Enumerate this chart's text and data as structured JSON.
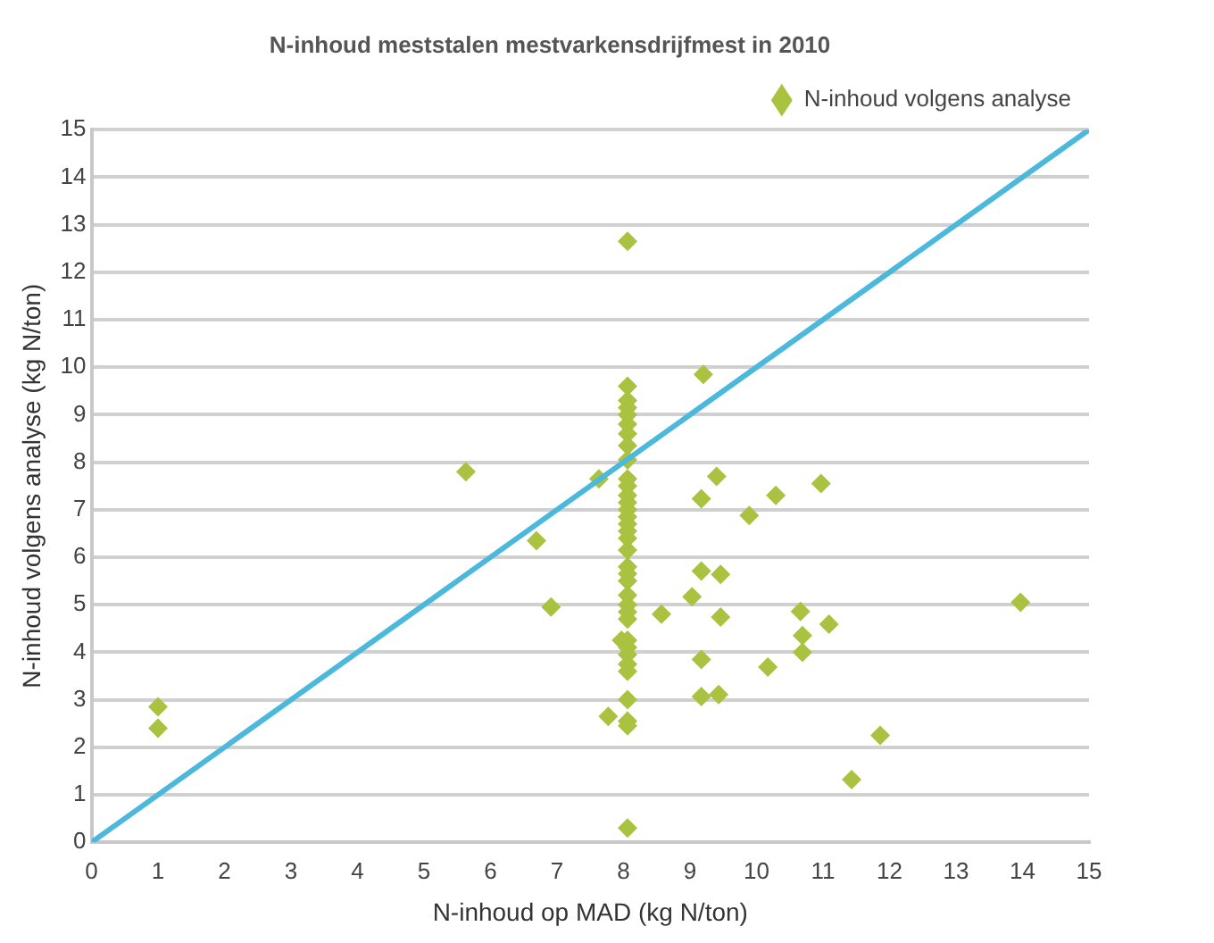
{
  "chart_data": {
    "type": "scatter",
    "title": "N-inhoud meststalen mestvarkensdrijfmest in 2010",
    "xlabel": "N-inhoud op MAD (kg N/ton)",
    "ylabel": "N-inhoud volgens analyse (kg N/ton)",
    "xlim": [
      0,
      15
    ],
    "xticks": [
      0,
      1,
      2,
      3,
      4,
      5,
      6,
      7,
      8,
      9,
      10,
      11,
      12,
      13,
      14,
      15
    ],
    "ylim": [
      0,
      15
    ],
    "yticks": [
      0,
      1,
      2,
      3,
      4,
      5,
      6,
      7,
      8,
      9,
      10,
      11,
      12,
      13,
      14,
      15
    ],
    "grid": "y",
    "legend": "top right",
    "series": [
      {
        "name": "N-inhoud volgens analyse",
        "color": "#a9c23f",
        "marker": "diamond",
        "x": [
          1.0,
          1.0,
          5.63,
          6.69,
          6.91,
          7.63,
          7.77,
          7.97,
          8.57,
          8.06,
          8.06,
          8.06,
          8.06,
          8.06,
          8.06,
          8.06,
          8.06,
          8.06,
          8.06,
          8.06,
          8.06,
          8.06,
          8.06,
          8.06,
          8.06,
          8.06,
          8.06,
          8.06,
          8.06,
          8.06,
          8.06,
          8.06,
          8.06,
          8.06,
          8.06,
          8.06,
          8.06,
          8.06,
          8.06,
          8.06,
          8.06,
          8.06,
          8.06,
          8.06,
          9.2,
          9.4,
          9.17,
          10.29,
          10.97,
          9.89,
          9.17,
          9.46,
          9.03,
          9.46,
          10.66,
          10.69,
          11.09,
          10.69,
          9.17,
          10.17,
          9.17,
          9.43,
          11.86,
          11.43,
          13.97
        ],
        "values": [
          2.85,
          2.4,
          7.8,
          6.35,
          4.95,
          7.65,
          2.65,
          4.25,
          4.8,
          12.65,
          0.3,
          9.6,
          9.3,
          9.15,
          9.0,
          8.8,
          8.6,
          8.35,
          8.05,
          7.65,
          7.5,
          7.3,
          7.15,
          7.0,
          6.85,
          6.7,
          6.55,
          6.4,
          6.15,
          5.8,
          5.65,
          5.5,
          5.2,
          5.0,
          4.85,
          4.7,
          4.25,
          4.1,
          3.95,
          3.75,
          3.6,
          3.0,
          2.55,
          2.45,
          9.85,
          7.7,
          7.23,
          7.3,
          7.55,
          6.88,
          5.71,
          5.64,
          5.17,
          4.74,
          4.86,
          4.35,
          4.59,
          4.0,
          3.85,
          3.69,
          3.07,
          3.11,
          2.25,
          1.32,
          5.05
        ]
      },
      {
        "color": "#4bb8dc",
        "type": "line",
        "x": [
          0,
          15
        ],
        "values": [
          0,
          15
        ]
      }
    ]
  }
}
